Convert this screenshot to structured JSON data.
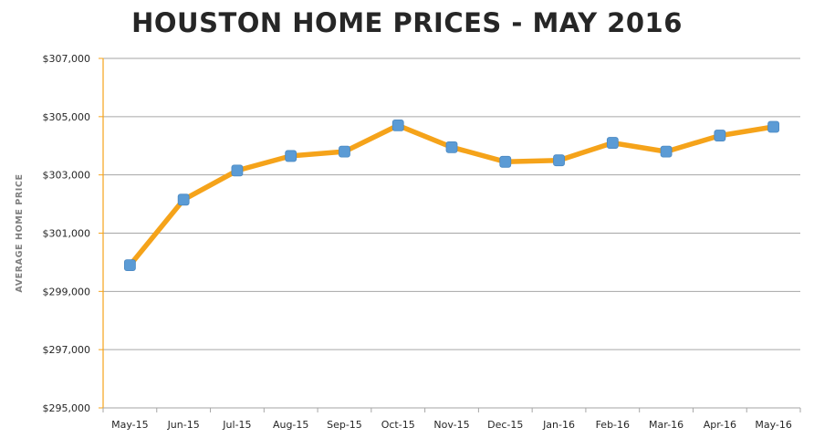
{
  "chart_data": {
    "type": "line",
    "title": "HOUSTON HOME PRICES - MAY 2016",
    "xlabel": "",
    "ylabel": "AVERAGE HOME PRICE",
    "categories": [
      "May-15",
      "Jun-15",
      "Jul-15",
      "Aug-15",
      "Sep-15",
      "Oct-15",
      "Nov-15",
      "Dec-15",
      "Jan-16",
      "Feb-16",
      "Mar-16",
      "Apr-16",
      "May-16"
    ],
    "series": [
      {
        "values": [
          299900,
          302150,
          303150,
          303650,
          303800,
          304700,
          303950,
          303450,
          303500,
          304100,
          303800,
          304350,
          304650
        ]
      }
    ],
    "ylim": [
      295000,
      307000
    ],
    "yticks": [
      295000,
      297000,
      299000,
      301000,
      303000,
      305000,
      307000
    ],
    "ytick_labels": [
      "$295,000",
      "$297,000",
      "$299,000",
      "$301,000",
      "$303,000",
      "$305,000",
      "$307,000"
    ],
    "grid": true,
    "legend": "none",
    "colors": {
      "line": "#f5a31a",
      "marker": "#5b9bd5",
      "grid": "#a6a6a6",
      "axis": "#f5a31a",
      "text": "#262626"
    }
  }
}
